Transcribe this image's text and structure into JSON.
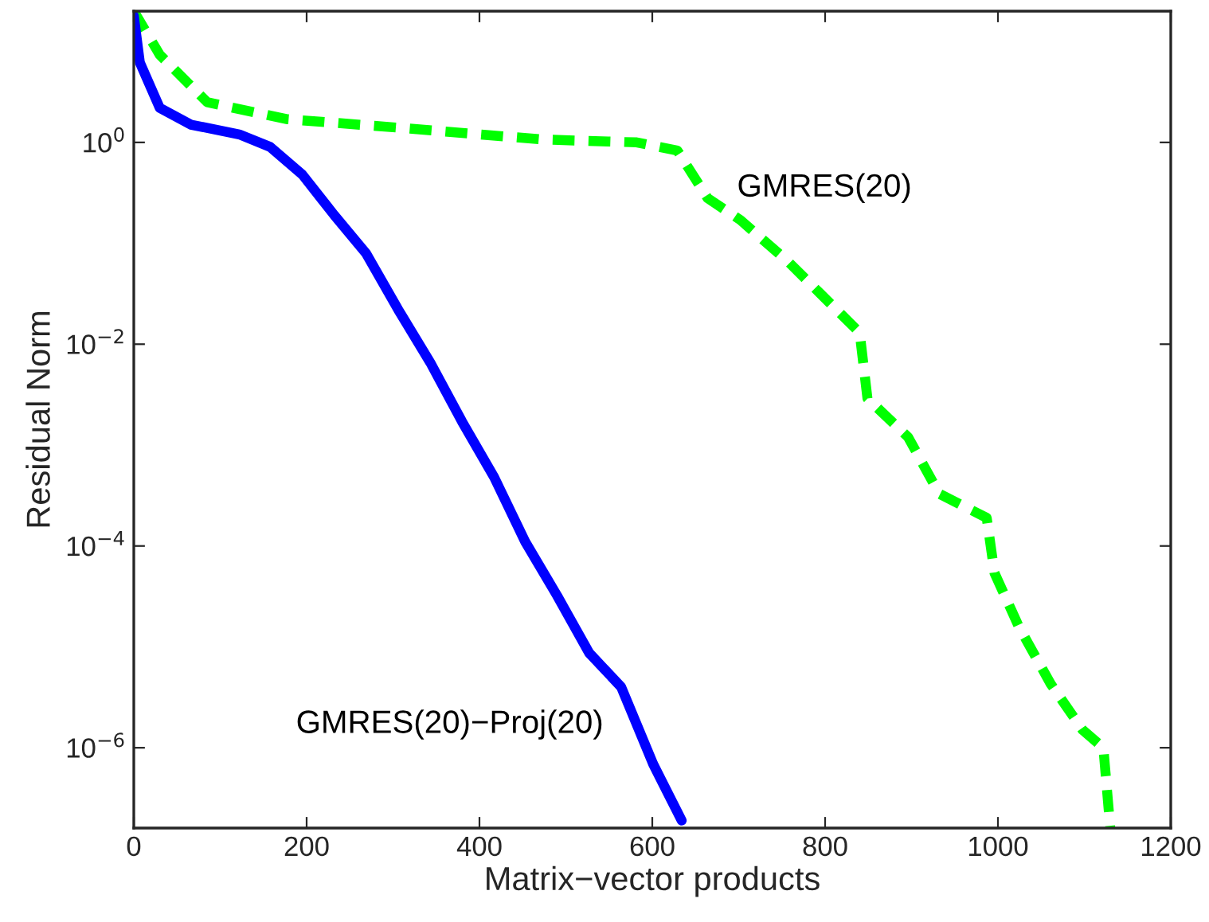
{
  "chart_data": {
    "type": "line",
    "xlabel": "Matrix−vector products",
    "ylabel": "Residual Norm",
    "log": "y",
    "xlim": [
      0,
      1200
    ],
    "xticks": [
      0,
      200,
      400,
      600,
      800,
      1000,
      1200
    ],
    "ylim": [
      1.6e-07,
      20
    ],
    "yticks": [
      {
        "value": 1e-06,
        "label": "10$^{−6}$"
      },
      {
        "value": 0.0001,
        "label": "10$^{−4}$"
      },
      {
        "value": 0.01,
        "label": "10$^{−2}$"
      },
      {
        "value": 1,
        "label": "10$^{0}$"
      }
    ],
    "grid": false,
    "legend": false,
    "marker": "none",
    "series": [
      {
        "name": "GMRES(20)",
        "color": "#00ff00",
        "line_style": "dashed",
        "x": [
          0,
          30,
          85,
          177,
          306,
          472,
          582,
          629,
          664,
          702,
          757,
          794,
          840,
          849,
          896,
          932,
          987,
          996,
          1024,
          1061,
          1098,
          1122,
          1130
        ],
        "values": [
          20,
          7.4,
          2.5,
          1.7,
          1.4,
          1.07,
          1.0,
          0.83,
          0.28,
          0.17,
          0.066,
          0.032,
          0.013,
          0.0029,
          0.0012,
          0.00033,
          0.00019,
          5.4e-05,
          1.6e-05,
          4.3e-06,
          1.5e-06,
          1e-06,
          1.6e-07
        ]
      },
      {
        "name": "GMRES(20)−Proj(20)",
        "color": "#0000ff",
        "line_style": "solid",
        "x": [
          0,
          7,
          30,
          66,
          122,
          158,
          195,
          232,
          269,
          306,
          343,
          380,
          417,
          453,
          490,
          527,
          564,
          601,
          634
        ],
        "values": [
          18,
          6.2,
          2.2,
          1.5,
          1.2,
          0.9,
          0.48,
          0.19,
          0.079,
          0.022,
          0.0066,
          0.0017,
          0.00048,
          0.00011,
          3.2e-05,
          8.7e-06,
          4e-06,
          6.9e-07,
          1.9e-07
        ]
      }
    ]
  }
}
